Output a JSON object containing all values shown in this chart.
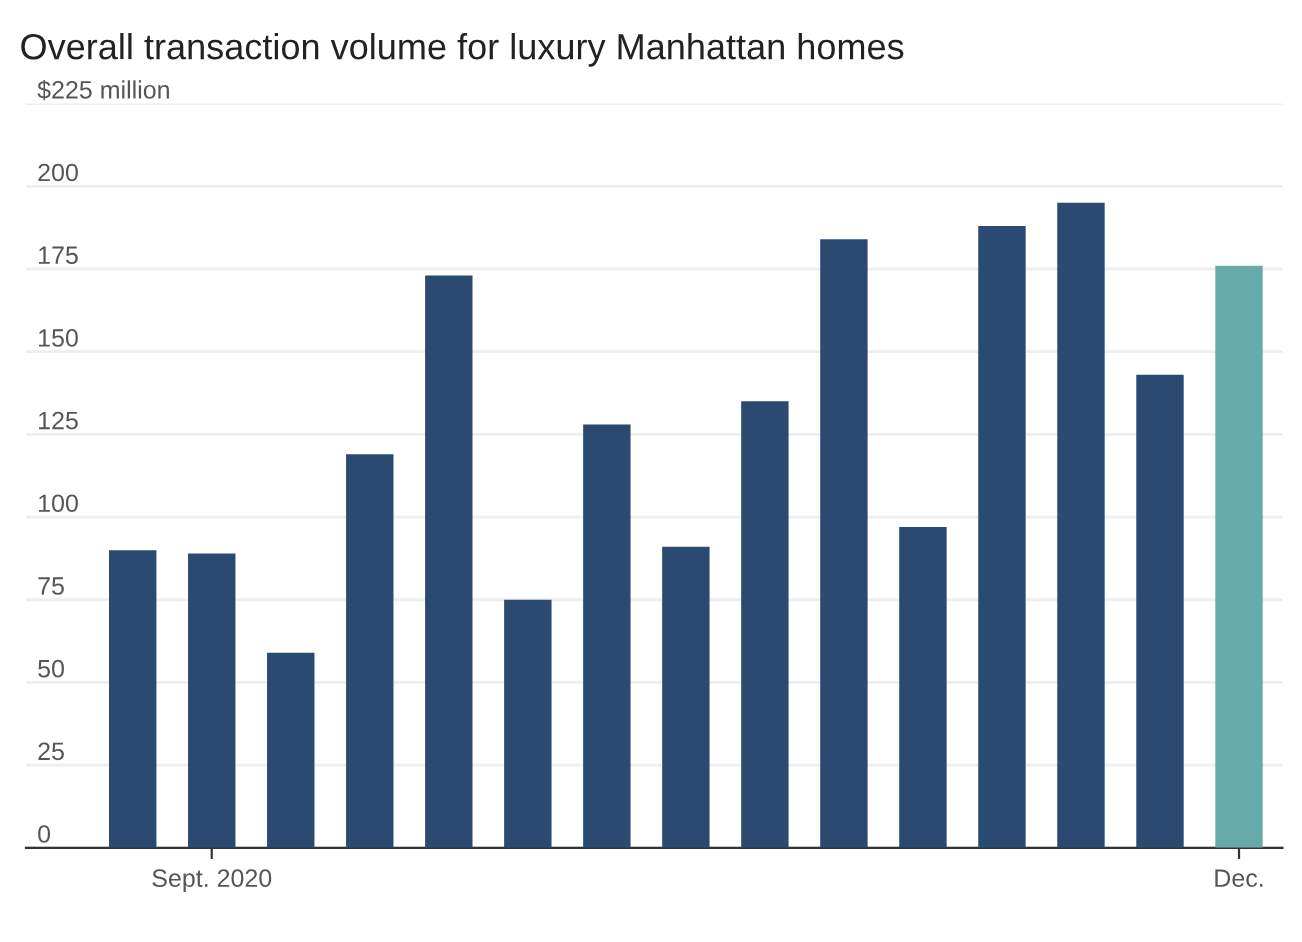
{
  "chart_data": {
    "type": "bar",
    "title": "Overall transaction volume for luxury Manhattan homes",
    "categories": [
      null,
      "Sept. 2020",
      null,
      null,
      null,
      null,
      null,
      null,
      null,
      null,
      null,
      null,
      null,
      null,
      "Dec."
    ],
    "values": [
      90,
      89,
      59,
      119,
      173,
      75,
      128,
      91,
      135,
      184,
      97,
      188,
      195,
      143,
      176
    ],
    "colors": [
      "#2b4a72",
      "#2b4a72",
      "#2b4a72",
      "#2b4a72",
      "#2b4a72",
      "#2b4a72",
      "#2b4a72",
      "#2b4a72",
      "#2b4a72",
      "#2b4a72",
      "#2b4a72",
      "#2b4a72",
      "#2b4a72",
      "#2b4a72",
      "#66aaa9"
    ],
    "ylim": [
      0,
      225
    ],
    "yticks": [
      0,
      25,
      50,
      75,
      100,
      125,
      150,
      175,
      200,
      {
        "value": 225,
        "label": "$225 million"
      }
    ],
    "grid": "y",
    "legend": false
  }
}
